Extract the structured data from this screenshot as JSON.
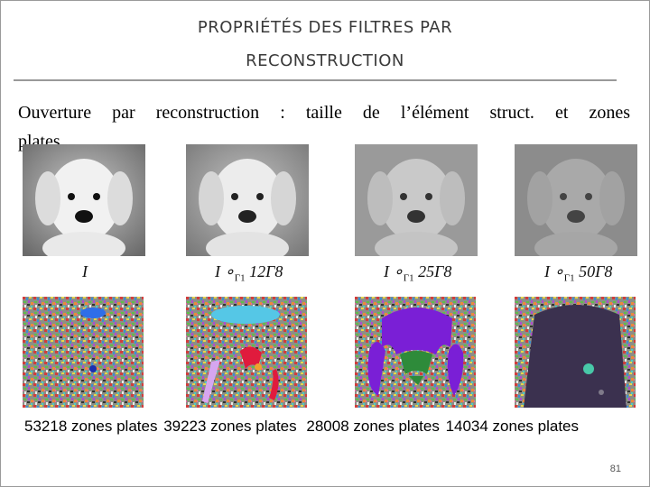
{
  "slide": {
    "title_line1": "PROPRIÉTÉS DES FILTRES PAR",
    "title_line2": "RECONSTRUCTION",
    "intro_line1": "Ouverture par reconstruction : taille de l’élément struct. et zones",
    "intro_line2": "plates",
    "page_number": "81"
  },
  "panels": [
    {
      "caption_main": "I",
      "caption_sub": "",
      "caption_tail": "",
      "zones_label": "53218 zones plates"
    },
    {
      "caption_main": "I ∘",
      "caption_sub": "Γ1",
      "caption_tail": " 12Γ8",
      "zones_label": "39223 zones plates"
    },
    {
      "caption_main": "I ∘",
      "caption_sub": "Γ1",
      "caption_tail": " 25Γ8",
      "zones_label": "28008 zones plates"
    },
    {
      "caption_main": "I ∘",
      "caption_sub": "Γ1",
      "caption_tail": " 50Γ8",
      "zones_label": "14034 zones plates"
    }
  ],
  "colors": {
    "title": "#3a3a3a",
    "rule": "#999999"
  }
}
